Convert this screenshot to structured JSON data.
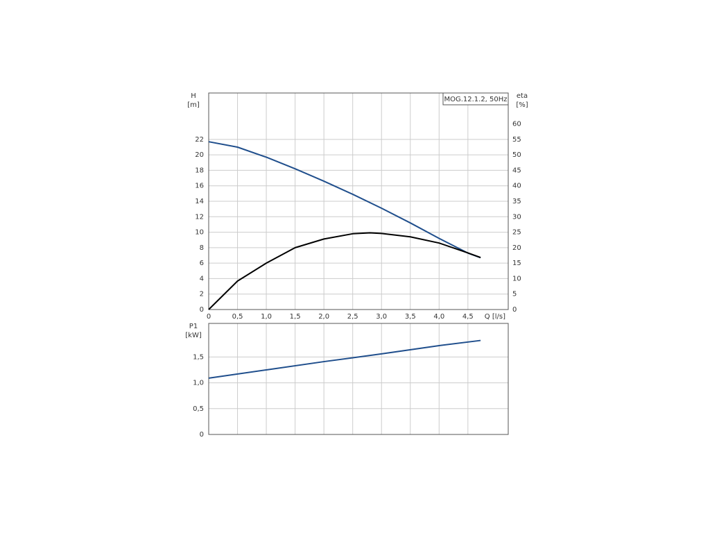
{
  "chart_data": [
    {
      "type": "line",
      "annotation": "MOG.12.1.2, 50Hz",
      "y_label": [
        "H",
        "[m]"
      ],
      "y2_label": [
        "eta",
        "[%]"
      ],
      "x_label": "Q [l/s]",
      "xlim": [
        0,
        5.2
      ],
      "xticks": [
        0,
        {
          "value": 0.5,
          "label": "0,5"
        },
        {
          "value": 1.0,
          "label": "1,0"
        },
        {
          "value": 1.5,
          "label": "1,5"
        },
        {
          "value": 2.0,
          "label": "2,0"
        },
        {
          "value": 2.5,
          "label": "2,5"
        },
        {
          "value": 3.0,
          "label": "3,0"
        },
        {
          "value": 3.5,
          "label": "3,5"
        },
        {
          "value": 4.0,
          "label": "4,0"
        },
        {
          "value": 4.5,
          "label": "4,5"
        }
      ],
      "ylim": [
        0,
        28
      ],
      "yticks": [
        0,
        2,
        4,
        6,
        8,
        10,
        12,
        14,
        16,
        18,
        20,
        22
      ],
      "y2lim": [
        0,
        70
      ],
      "y2ticks": [
        0,
        5,
        10,
        15,
        20,
        25,
        30,
        35,
        40,
        45,
        50,
        55,
        60
      ],
      "grid": true,
      "series": [
        {
          "color": "#1f4e8c",
          "x": [
            0,
            0.5,
            1.0,
            1.5,
            2.0,
            2.5,
            3.0,
            3.5,
            4.0,
            4.5,
            4.72
          ],
          "values": [
            21.7,
            21.0,
            19.7,
            18.2,
            16.6,
            14.9,
            13.1,
            11.2,
            9.2,
            7.3,
            6.7
          ]
        },
        {
          "color": "#000000",
          "axis": "y2",
          "x": [
            0,
            0.5,
            1.0,
            1.5,
            2.0,
            2.5,
            2.8,
            3.0,
            3.5,
            4.0,
            4.5,
            4.72
          ],
          "values": [
            0,
            9.2,
            15,
            20,
            22.8,
            24.5,
            24.8,
            24.6,
            23.5,
            21.5,
            18.3,
            16.8
          ]
        }
      ]
    },
    {
      "type": "line",
      "y_label": [
        "P1",
        "[kW]"
      ],
      "xlim": [
        0,
        5.2
      ],
      "ylim": [
        0,
        2.15
      ],
      "yticks": [
        0,
        {
          "value": 0.5,
          "label": "0,5"
        },
        {
          "value": 1.0,
          "label": "1,0"
        },
        {
          "value": 1.5,
          "label": "1,5"
        }
      ],
      "grid": true,
      "series": [
        {
          "color": "#1f4e8c",
          "x": [
            0,
            1,
            2,
            3,
            4,
            4.72
          ],
          "values": [
            1.09,
            1.25,
            1.41,
            1.56,
            1.72,
            1.82
          ]
        }
      ]
    }
  ]
}
